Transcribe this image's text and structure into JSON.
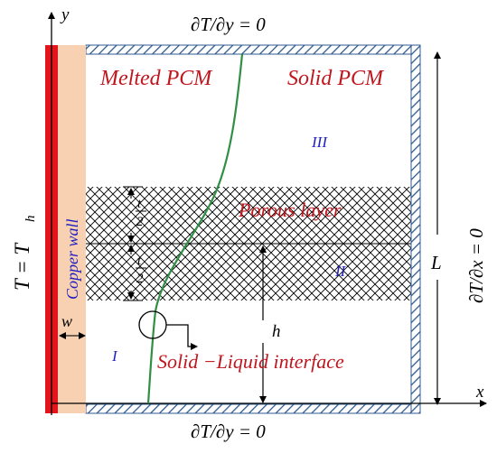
{
  "labels": {
    "axis_y": "y",
    "axis_x": "x",
    "bc_top": "∂T/∂y = 0",
    "bc_bottom": "∂T/∂y = 0",
    "bc_right": "∂T/∂x = 0",
    "bc_left": "T = T",
    "bc_left_sub": "h",
    "copper_wall": "Copper wall",
    "melted_pcm": "Melted PCM",
    "solid_pcm": "Solid PCM",
    "porous_layer": "Porous layer",
    "interface": "Solid −Liquid interface",
    "region_1": "I",
    "region_2": "II",
    "region_3": "III",
    "dim_L": "L",
    "dim_h": "h",
    "dim_w": "w",
    "dim_t_num": "t",
    "dim_t_den": "2"
  },
  "colors": {
    "copper_red": "#e3141c",
    "copper_wall": "#f8d1b3",
    "interface_green": "#2f8f45",
    "text_red": "#c0161e",
    "text_blue": "#1f1fbf",
    "hatch": "#2f5a8e"
  }
}
